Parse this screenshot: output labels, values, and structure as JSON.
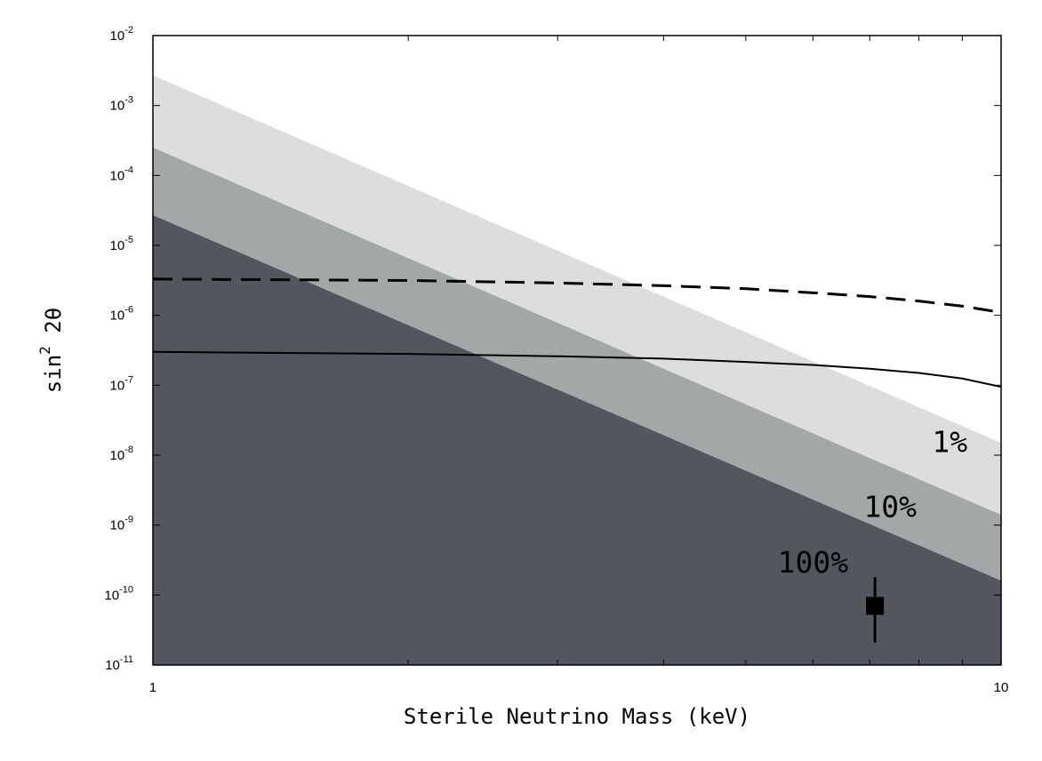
{
  "chart_data": {
    "type": "area",
    "title": "",
    "xlabel": "Sterile Neutrino Mass (keV)",
    "ylabel": {
      "base": "sin",
      "power": "2",
      "suffix": " 2θ"
    },
    "xscale": "log",
    "yscale": "log",
    "xlim": [
      1,
      10
    ],
    "ylim": [
      1e-11,
      0.01
    ],
    "grid": false,
    "legend": "none",
    "x_ticks": [
      {
        "value": 1,
        "label": "1"
      },
      {
        "value": 10,
        "label": "10"
      }
    ],
    "y_ticks": [
      {
        "value": 0.01,
        "base": "10",
        "exp": "-2"
      },
      {
        "value": 0.001,
        "base": "10",
        "exp": "-3"
      },
      {
        "value": 0.0001,
        "base": "10",
        "exp": "-4"
      },
      {
        "value": 1e-05,
        "base": "10",
        "exp": "-5"
      },
      {
        "value": 1e-06,
        "base": "10",
        "exp": "-6"
      },
      {
        "value": 1e-07,
        "base": "10",
        "exp": "-7"
      },
      {
        "value": 1e-08,
        "base": "10",
        "exp": "-8"
      },
      {
        "value": 1e-09,
        "base": "10",
        "exp": "-9"
      },
      {
        "value": 1e-10,
        "base": "10",
        "exp": "-10"
      },
      {
        "value": 1e-11,
        "base": "10",
        "exp": "-11"
      }
    ],
    "x_minor_ticks": [
      2,
      3,
      4,
      5,
      6,
      7,
      8,
      9
    ],
    "bands": [
      {
        "label": "1%",
        "color": "#dcdddf",
        "boundary": [
          [
            1,
            0.0027
          ],
          [
            10,
            1.5e-08
          ]
        ],
        "label_anchor": [
          8.7,
          1.1e-08
        ]
      },
      {
        "label": "10%",
        "color": "#a4a7a7",
        "boundary": [
          [
            1,
            0.00025
          ],
          [
            10,
            1.4e-09
          ]
        ],
        "label_anchor": [
          7.4,
          1.3e-09
        ]
      },
      {
        "label": "100%",
        "color": "#52565d",
        "boundary": [
          [
            1,
            2.7e-05
          ],
          [
            10,
            1.6e-10
          ]
        ],
        "label_anchor": [
          6.0,
          2.1e-10
        ]
      }
    ],
    "lines": [
      {
        "style": "dashed",
        "color": "#000000",
        "points": [
          [
            1,
            3.3e-06
          ],
          [
            2,
            3.15e-06
          ],
          [
            3,
            2.9e-06
          ],
          [
            4,
            2.65e-06
          ],
          [
            5,
            2.4e-06
          ],
          [
            6,
            2.1e-06
          ],
          [
            7,
            1.85e-06
          ],
          [
            8,
            1.6e-06
          ],
          [
            9,
            1.35e-06
          ],
          [
            10,
            1.1e-06
          ]
        ]
      },
      {
        "style": "solid",
        "color": "#000000",
        "points": [
          [
            1,
            3e-07
          ],
          [
            2,
            2.8e-07
          ],
          [
            3,
            2.6e-07
          ],
          [
            4,
            2.4e-07
          ],
          [
            5,
            2.15e-07
          ],
          [
            6,
            1.95e-07
          ],
          [
            7,
            1.72e-07
          ],
          [
            8,
            1.5e-07
          ],
          [
            9,
            1.25e-07
          ],
          [
            10,
            9.5e-08
          ]
        ]
      }
    ],
    "points": [
      {
        "x": 7.1,
        "y": 7e-11,
        "y_err_low": 2.1e-11,
        "y_err_high": 1.8e-10,
        "marker": "square",
        "color": "#000000"
      }
    ]
  }
}
